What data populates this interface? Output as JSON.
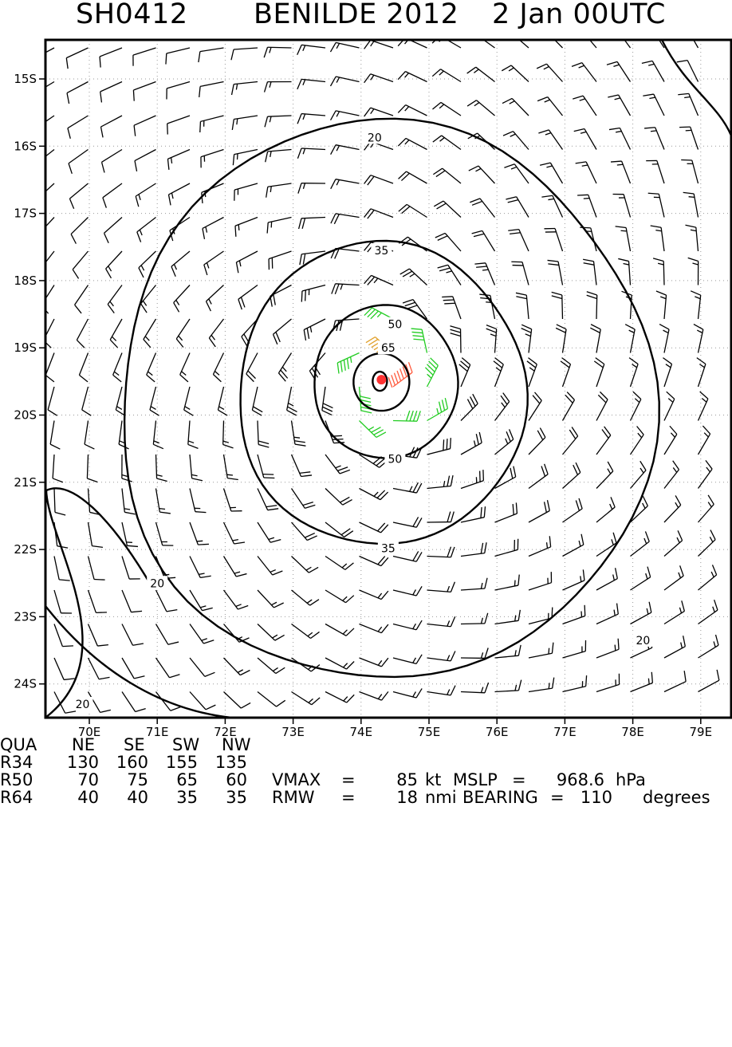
{
  "header": {
    "storm_id": "SH0412",
    "storm_name": "BENILDE 2012",
    "time": "2 Jan 00UTC"
  },
  "chart_data": {
    "type": "wind_barb_map",
    "title": "SH0412 BENILDE 2012 2 Jan 00UTC",
    "x_axis": {
      "unit": "deg E",
      "range": [
        69.4,
        79.4
      ],
      "ticks": [
        "70E",
        "71E",
        "72E",
        "73E",
        "74E",
        "75E",
        "76E",
        "77E",
        "78E",
        "79E"
      ],
      "tick_values": [
        70,
        71,
        72,
        73,
        74,
        75,
        76,
        77,
        78,
        79
      ]
    },
    "y_axis": {
      "unit": "deg S",
      "range": [
        14.4,
        24.5
      ],
      "ticks": [
        "15S",
        "16S",
        "17S",
        "18S",
        "19S",
        "20S",
        "21S",
        "22S",
        "23S",
        "24S"
      ],
      "tick_values": [
        15,
        16,
        17,
        18,
        19,
        20,
        21,
        22,
        23,
        24
      ]
    },
    "grid": true,
    "center": {
      "lon": 74.3,
      "lat": 19.45
    },
    "contour_labels": [
      {
        "text": "20",
        "lon": 74.2,
        "lat": 15.87
      },
      {
        "text": "35",
        "lon": 74.3,
        "lat": 17.55
      },
      {
        "text": "50",
        "lon": 74.5,
        "lat": 18.65
      },
      {
        "text": "65",
        "lon": 74.4,
        "lat": 19.0
      },
      {
        "text": "50",
        "lon": 74.5,
        "lat": 20.65
      },
      {
        "text": "35",
        "lon": 74.4,
        "lat": 21.98
      },
      {
        "text": "20",
        "lon": 71.0,
        "lat": 22.5
      },
      {
        "text": "20",
        "lon": 78.15,
        "lat": 23.35
      },
      {
        "text": "20",
        "lon": 69.9,
        "lat": 24.3
      }
    ],
    "wind_colors": {
      "below_34kt": "#000000",
      "kt_34_49": "#22cc22",
      "kt_50_63": "#e1a12b",
      "kt_64_plus": "#ff5a3d",
      "center_marker": "#ff3333"
    }
  },
  "radii_table": {
    "header": [
      "QUA",
      "NE",
      "SE",
      "SW",
      "NW"
    ],
    "rows": [
      {
        "label": "R34",
        "values": [
          "130",
          "160",
          "155",
          "135"
        ]
      },
      {
        "label": "R50",
        "values": [
          "70",
          "75",
          "65",
          "60"
        ]
      },
      {
        "label": "R64",
        "values": [
          "40",
          "40",
          "35",
          "35"
        ]
      }
    ]
  },
  "stats": {
    "vmax_label": "VMAX",
    "vmax_value": "85",
    "vmax_unit": "kt",
    "mslp_label": "MSLP",
    "mslp_value": "968.6",
    "mslp_unit": "hPa",
    "rmw_label": "RMW",
    "rmw_value": "18",
    "rmw_unit": "nmi",
    "bearing_label": "BEARING",
    "bearing_value": "110",
    "bearing_unit": "degrees"
  }
}
